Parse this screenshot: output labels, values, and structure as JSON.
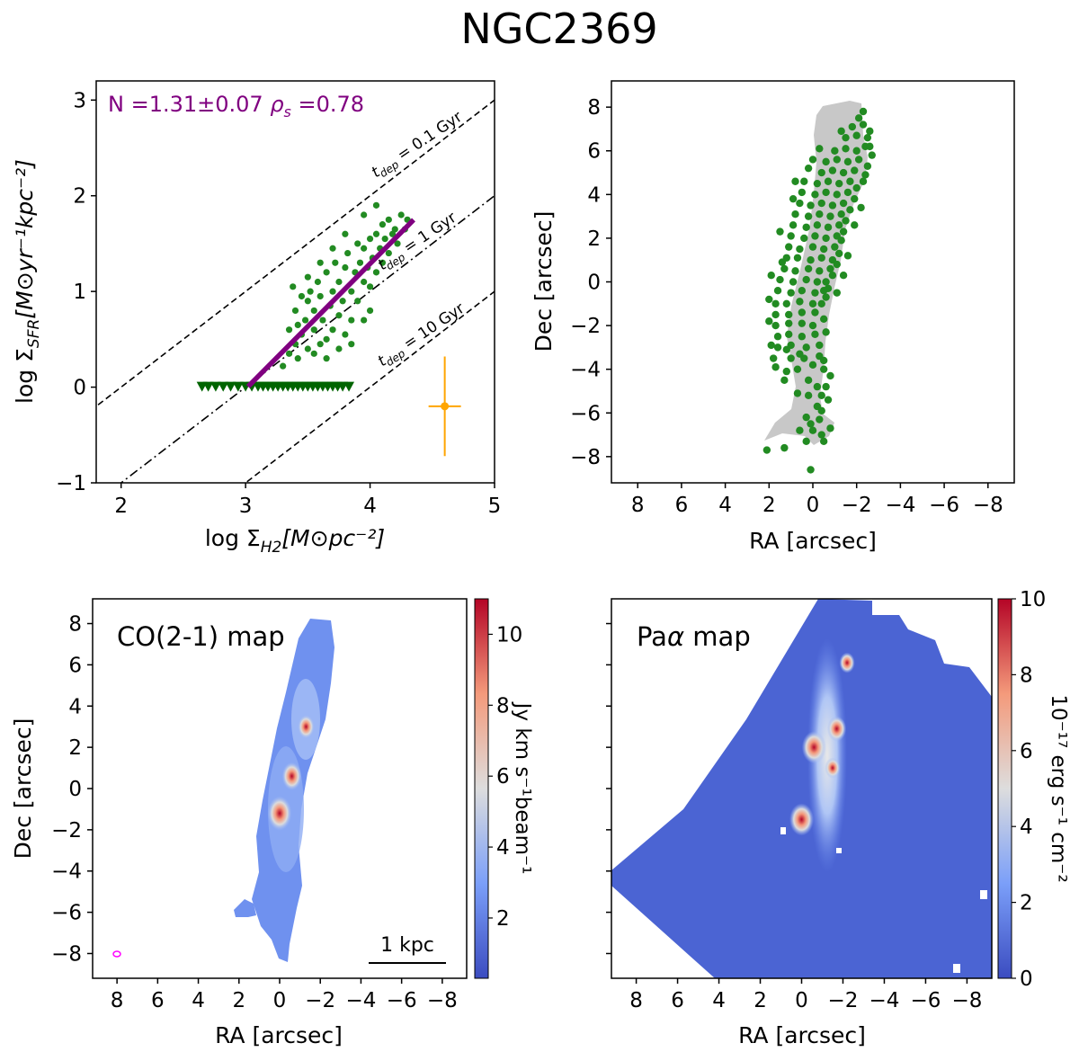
{
  "figure": {
    "title": "NGC2369"
  },
  "colorbars": {
    "co": {
      "label": "Jy km s⁻¹beam⁻¹",
      "ticks": [
        "2",
        "4",
        "6",
        "8",
        "10"
      ]
    },
    "pa": {
      "label": "10⁻¹⁷ erg s⁻¹ cm⁻²",
      "ticks": [
        "0",
        "2",
        "4",
        "6",
        "8",
        "10"
      ]
    }
  },
  "chart_data": [
    {
      "type": "scatter",
      "panel": "ks-relation",
      "xlabel_main": "log Σ",
      "xlabel_sub": "H2",
      "xlabel_unit": "[M⊙pc⁻²]",
      "ylabel_main": "log Σ",
      "ylabel_sub": "SFR",
      "ylabel_unit": "[M⊙yr⁻¹kpc⁻²]",
      "xlim": [
        1.8,
        5.0
      ],
      "ylim": [
        -1.0,
        3.2
      ],
      "xticks": [
        "2",
        "3",
        "4",
        "5"
      ],
      "yticks": [
        "−1",
        "0",
        "1",
        "2",
        "3"
      ],
      "annotation_n": "N =1.31±0.07 ",
      "annotation_rho": "ρ",
      "annotation_rho_sub": "s",
      "annotation_rho_val": " =0.78",
      "fit": {
        "slope": 1.31,
        "x": [
          3.02,
          4.35
        ],
        "color": "#800080"
      },
      "depletion_lines": [
        {
          "label": "t",
          "sub": "dep",
          "value": " = 0.1 Gyr",
          "intercept": -2.0,
          "style": "dashed"
        },
        {
          "label": "t",
          "sub": "dep",
          "value": " = 1 Gyr",
          "intercept": -3.0,
          "style": "dashdot"
        },
        {
          "label": "t",
          "sub": "dep",
          "value": " = 10 Gyr",
          "intercept": -4.0,
          "style": "dashed"
        }
      ],
      "series": [
        {
          "marker": "circle",
          "color": "#228b22",
          "points": [
            [
              3.3,
              0.22
            ],
            [
              3.35,
              0.35
            ],
            [
              3.4,
              0.45
            ],
            [
              3.42,
              0.3
            ],
            [
              3.45,
              0.55
            ],
            [
              3.48,
              0.7
            ],
            [
              3.5,
              0.4
            ],
            [
              3.5,
              0.9
            ],
            [
              3.52,
              1.0
            ],
            [
              3.55,
              0.6
            ],
            [
              3.55,
              0.8
            ],
            [
              3.58,
              1.1
            ],
            [
              3.6,
              0.45
            ],
            [
              3.6,
              0.95
            ],
            [
              3.62,
              0.7
            ],
            [
              3.65,
              1.2
            ],
            [
              3.65,
              0.5
            ],
            [
              3.68,
              0.85
            ],
            [
              3.7,
              1.0
            ],
            [
              3.7,
              0.6
            ],
            [
              3.72,
              1.3
            ],
            [
              3.75,
              0.75
            ],
            [
              3.75,
              1.1
            ],
            [
              3.78,
              0.9
            ],
            [
              3.8,
              1.25
            ],
            [
              3.8,
              0.55
            ],
            [
              3.82,
              1.4
            ],
            [
              3.85,
              1.0
            ],
            [
              3.85,
              0.7
            ],
            [
              3.88,
              1.2
            ],
            [
              3.9,
              1.5
            ],
            [
              3.9,
              0.9
            ],
            [
              3.92,
              1.3
            ],
            [
              3.95,
              1.1
            ],
            [
              3.95,
              1.45
            ],
            [
              3.98,
              1.25
            ],
            [
              4.0,
              1.55
            ],
            [
              4.0,
              1.05
            ],
            [
              4.02,
              1.35
            ],
            [
              4.05,
              1.6
            ],
            [
              4.05,
              1.2
            ],
            [
              4.08,
              1.45
            ],
            [
              4.1,
              1.7
            ],
            [
              4.1,
              1.3
            ],
            [
              4.12,
              1.55
            ],
            [
              4.15,
              1.4
            ],
            [
              4.15,
              1.75
            ],
            [
              4.18,
              1.6
            ],
            [
              4.2,
              1.65
            ],
            [
              4.22,
              1.5
            ],
            [
              4.25,
              1.8
            ],
            [
              4.28,
              1.65
            ],
            [
              4.3,
              1.75
            ],
            [
              3.45,
              0.95
            ],
            [
              3.5,
              1.15
            ],
            [
              3.6,
              1.3
            ],
            [
              3.7,
              1.45
            ],
            [
              3.8,
              1.6
            ],
            [
              3.95,
              1.8
            ],
            [
              4.05,
              1.9
            ],
            [
              3.55,
              0.35
            ],
            [
              3.65,
              0.3
            ],
            [
              3.75,
              0.4
            ],
            [
              3.85,
              0.45
            ],
            [
              3.95,
              0.7
            ],
            [
              4.0,
              0.8
            ],
            [
              3.35,
              0.6
            ],
            [
              3.4,
              0.8
            ],
            [
              3.38,
              1.05
            ],
            [
              3.42,
              0.65
            ]
          ]
        },
        {
          "marker": "triangle-down",
          "color": "#006400",
          "y": 0.0,
          "x": [
            2.65,
            2.7,
            2.76,
            2.82,
            2.88,
            2.94,
            3.0,
            3.05,
            3.1,
            3.14,
            3.18,
            3.22,
            3.26,
            3.3,
            3.34,
            3.38,
            3.42,
            3.46,
            3.5,
            3.54,
            3.58,
            3.62,
            3.66,
            3.7,
            3.74,
            3.78,
            3.83
          ]
        }
      ],
      "error_bar": {
        "x": 4.6,
        "y": -0.2,
        "xerr": 0.13,
        "yerr": 0.52,
        "color": "#ffa500"
      }
    },
    {
      "type": "scatter",
      "panel": "pixel-map",
      "xlabel": "RA [arcsec]",
      "ylabel": "Dec [arcsec]",
      "xlim": [
        9.2,
        -9.2
      ],
      "ylim": [
        -9.2,
        9.2
      ],
      "xticks": [
        "8",
        "6",
        "4",
        "2",
        "0",
        "−2",
        "−4",
        "−6",
        "−8"
      ],
      "yticks": [
        "−8",
        "−6",
        "−4",
        "−2",
        "0",
        "2",
        "4",
        "6",
        "8"
      ],
      "mask_color": "#c8c8c8",
      "points_color": "#228b22",
      "points": [
        [
          2.1,
          -7.7
        ],
        [
          1.3,
          -7.6
        ],
        [
          0.3,
          -7.3
        ],
        [
          -0.5,
          -7.3
        ],
        [
          0.6,
          -6.8
        ],
        [
          -0.4,
          -7.0
        ],
        [
          -0.8,
          -6.7
        ],
        [
          0.1,
          -6.5
        ],
        [
          0.0,
          -6.8
        ],
        [
          0.3,
          -6.2
        ],
        [
          -0.3,
          -6.3
        ],
        [
          0.1,
          -8.6
        ],
        [
          -0.2,
          -5.7
        ],
        [
          0.2,
          -5.2
        ],
        [
          -0.4,
          -5.2
        ],
        [
          -0.6,
          -4.8
        ],
        [
          0.2,
          -4.5
        ],
        [
          -0.2,
          -4.8
        ],
        [
          -0.8,
          -4.3
        ],
        [
          -0.5,
          -4.0
        ],
        [
          1.7,
          -3.9
        ],
        [
          1.2,
          -4.1
        ],
        [
          0.7,
          -4.0
        ],
        [
          0.0,
          -3.8
        ],
        [
          1.8,
          -3.5
        ],
        [
          1.0,
          -3.5
        ],
        [
          0.4,
          -3.5
        ],
        [
          -0.3,
          -3.4
        ],
        [
          1.6,
          -3.0
        ],
        [
          1.0,
          -2.9
        ],
        [
          0.3,
          -3.0
        ],
        [
          -0.3,
          -2.9
        ],
        [
          1.6,
          -2.5
        ],
        [
          1.1,
          -2.4
        ],
        [
          0.5,
          -2.5
        ],
        [
          -0.1,
          -2.4
        ],
        [
          1.7,
          -2.0
        ],
        [
          1.1,
          -1.9
        ],
        [
          0.5,
          -1.9
        ],
        [
          0.0,
          -2.0
        ],
        [
          1.7,
          -1.5
        ],
        [
          1.1,
          -1.5
        ],
        [
          0.5,
          -1.4
        ],
        [
          -0.1,
          -1.4
        ],
        [
          1.7,
          -1.0
        ],
        [
          1.2,
          -1.0
        ],
        [
          0.6,
          -0.9
        ],
        [
          0.0,
          -1.0
        ],
        [
          -0.4,
          -1.0
        ],
        [
          1.6,
          -0.4
        ],
        [
          1.0,
          -0.5
        ],
        [
          0.5,
          -0.4
        ],
        [
          -0.1,
          -0.5
        ],
        [
          -0.5,
          -0.4
        ],
        [
          1.5,
          0.1
        ],
        [
          0.9,
          0.0
        ],
        [
          0.3,
          0.1
        ],
        [
          -0.2,
          0.0
        ],
        [
          -0.6,
          0.0
        ],
        [
          1.3,
          0.6
        ],
        [
          0.8,
          0.5
        ],
        [
          0.2,
          0.6
        ],
        [
          -0.3,
          0.5
        ],
        [
          -0.8,
          0.6
        ],
        [
          1.2,
          1.1
        ],
        [
          0.7,
          1.1
        ],
        [
          0.1,
          1.0
        ],
        [
          -0.4,
          1.1
        ],
        [
          -0.9,
          1.0
        ],
        [
          1.1,
          1.6
        ],
        [
          0.6,
          1.5
        ],
        [
          0.0,
          1.6
        ],
        [
          -0.5,
          1.5
        ],
        [
          -1.0,
          1.6
        ],
        [
          1.0,
          2.1
        ],
        [
          0.4,
          2.0
        ],
        [
          -0.1,
          2.1
        ],
        [
          -0.6,
          2.0
        ],
        [
          -1.1,
          2.1
        ],
        [
          0.9,
          2.6
        ],
        [
          0.3,
          2.5
        ],
        [
          -0.2,
          2.6
        ],
        [
          -0.7,
          2.5
        ],
        [
          -1.2,
          2.6
        ],
        [
          0.8,
          3.1
        ],
        [
          0.2,
          3.0
        ],
        [
          -0.3,
          3.1
        ],
        [
          -0.8,
          3.0
        ],
        [
          -1.3,
          3.1
        ],
        [
          0.6,
          3.6
        ],
        [
          0.1,
          3.5
        ],
        [
          -0.4,
          3.6
        ],
        [
          -0.9,
          3.5
        ],
        [
          -1.4,
          3.6
        ],
        [
          0.5,
          4.1
        ],
        [
          -0.1,
          4.0
        ],
        [
          -0.6,
          4.1
        ],
        [
          -1.1,
          4.0
        ],
        [
          -1.6,
          4.1
        ],
        [
          0.4,
          4.6
        ],
        [
          -0.2,
          4.5
        ],
        [
          -0.7,
          4.6
        ],
        [
          -1.2,
          4.5
        ],
        [
          -1.7,
          4.6
        ],
        [
          -0.4,
          5.0
        ],
        [
          -0.9,
          5.1
        ],
        [
          -1.4,
          5.0
        ],
        [
          -1.9,
          5.1
        ],
        [
          -0.6,
          5.5
        ],
        [
          -1.1,
          5.6
        ],
        [
          -1.6,
          5.5
        ],
        [
          -2.1,
          5.6
        ],
        [
          -1.0,
          6.0
        ],
        [
          -1.5,
          6.1
        ],
        [
          -2.0,
          6.0
        ],
        [
          -2.4,
          6.2
        ],
        [
          -1.5,
          6.6
        ],
        [
          -2.0,
          6.7
        ],
        [
          -2.5,
          6.6
        ],
        [
          -1.8,
          7.1
        ],
        [
          -2.3,
          7.2
        ],
        [
          -2.1,
          7.5
        ],
        [
          -2.3,
          7.8
        ],
        [
          -2.6,
          6.9
        ],
        [
          -2.5,
          5.3
        ],
        [
          -2.3,
          4.6
        ],
        [
          -2.0,
          4.3
        ],
        [
          -1.9,
          3.8
        ],
        [
          -1.7,
          3.3
        ],
        [
          -1.5,
          2.8
        ],
        [
          -1.4,
          2.3
        ],
        [
          -1.3,
          1.9
        ],
        [
          -1.2,
          1.3
        ],
        [
          -1.1,
          0.8
        ],
        [
          -0.9,
          0.3
        ],
        [
          -0.7,
          -0.3
        ],
        [
          -0.6,
          -0.7
        ],
        [
          1.9,
          0.3
        ],
        [
          2.0,
          -0.8
        ],
        [
          2.0,
          -1.8
        ],
        [
          1.9,
          -2.9
        ],
        [
          1.4,
          0.9
        ],
        [
          1.5,
          2.3
        ],
        [
          0.9,
          3.8
        ],
        [
          0.8,
          4.6
        ],
        [
          0.2,
          5.2
        ],
        [
          -0.5,
          -1.7
        ],
        [
          -0.6,
          -2.3
        ],
        [
          -0.5,
          -3.6
        ],
        [
          0.7,
          -5.1
        ],
        [
          -0.4,
          -5.9
        ],
        [
          1.3,
          -4.5
        ],
        [
          -0.7,
          -5.4
        ],
        [
          0.0,
          5.6
        ],
        [
          -0.3,
          6.1
        ],
        [
          -1.3,
          6.9
        ],
        [
          -2.6,
          6.2
        ],
        [
          -2.7,
          5.8
        ],
        [
          -2.4,
          4.9
        ],
        [
          -2.2,
          3.4
        ],
        [
          -1.9,
          2.6
        ],
        [
          -1.6,
          1.2
        ],
        [
          -1.4,
          0.3
        ],
        [
          -1.1,
          -0.5
        ],
        [
          1.2,
          -3.1
        ],
        [
          0.6,
          -3.3
        ]
      ]
    },
    {
      "type": "heatmap",
      "panel": "co-map",
      "title": "CO(2-1) map",
      "xlabel": "RA [arcsec]",
      "ylabel": "Dec [arcsec]",
      "xlim": [
        9.2,
        -9.2
      ],
      "ylim": [
        -9.2,
        9.2
      ],
      "xticks": [
        "8",
        "6",
        "4",
        "2",
        "0",
        "−2",
        "−4",
        "−6",
        "−8"
      ],
      "yticks": [
        "−8",
        "−6",
        "−4",
        "−2",
        "0",
        "2",
        "4",
        "6",
        "8"
      ],
      "colormap": "coolwarm",
      "vmin": 0.3,
      "vmax": 11,
      "scalebar_label": "1 kpc",
      "beam": {
        "ra": 8.0,
        "dec": -8.2,
        "color": "#ff00ff"
      },
      "peaks": [
        {
          "ra": 0.0,
          "dec": -1.2,
          "value": 11
        },
        {
          "ra": -0.6,
          "dec": 0.6,
          "value": 8
        },
        {
          "ra": -1.3,
          "dec": 3.0,
          "value": 6
        }
      ]
    },
    {
      "type": "heatmap",
      "panel": "paa-map",
      "title_main": "Pa",
      "title_greek": "α",
      "title_rest": " map",
      "xlabel": "RA [arcsec]",
      "xlim": [
        9.2,
        -9.2
      ],
      "ylim": [
        -9.2,
        9.2
      ],
      "xticks": [
        "8",
        "6",
        "4",
        "2",
        "0",
        "−2",
        "−4",
        "−6",
        "−8"
      ],
      "colormap": "coolwarm",
      "vmin": 0,
      "vmax": 10,
      "peaks": [
        {
          "ra": -0.6,
          "dec": 2.0,
          "value": 10
        },
        {
          "ra": 0.0,
          "dec": -1.5,
          "value": 10
        },
        {
          "ra": -1.7,
          "dec": 2.9,
          "value": 7
        },
        {
          "ra": -1.5,
          "dec": 1.0,
          "value": 5
        },
        {
          "ra": -2.2,
          "dec": 6.1,
          "value": 5
        }
      ]
    }
  ]
}
